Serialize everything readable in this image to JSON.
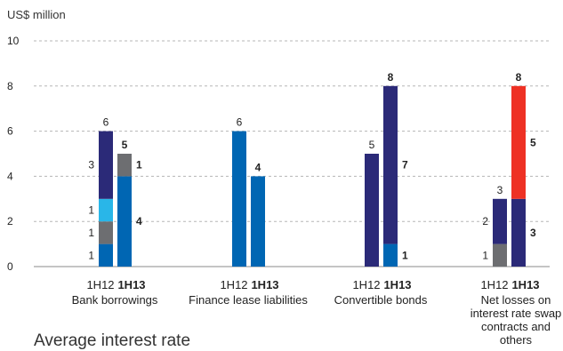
{
  "chart_data": {
    "type": "bar",
    "ylabel": "US$ million",
    "ylim": [
      0,
      10
    ],
    "yticks": [
      0,
      2,
      4,
      6,
      8,
      10
    ],
    "grid": true,
    "colors": {
      "navy": "#2b2a78",
      "blue": "#0066b3",
      "gray": "#6d6e71",
      "cyan": "#29b6e8",
      "red": "#ee3124"
    },
    "groups": [
      {
        "category": [
          "Bank borrowings"
        ],
        "bars": [
          {
            "period": "1H12",
            "bold": false,
            "total": 6,
            "segments": [
              {
                "value": 1,
                "color": "blue",
                "label": "1"
              },
              {
                "value": 1,
                "color": "gray",
                "label": "1"
              },
              {
                "value": 1,
                "color": "cyan",
                "label": "1"
              },
              {
                "value": 3,
                "color": "navy",
                "label": "3"
              }
            ]
          },
          {
            "period": "1H13",
            "bold": true,
            "total": 5,
            "segments": [
              {
                "value": 4,
                "color": "blue",
                "label": "4"
              },
              {
                "value": 1,
                "color": "gray",
                "label": "1"
              }
            ]
          }
        ]
      },
      {
        "category": [
          "Finance lease liabilities"
        ],
        "bars": [
          {
            "period": "1H12",
            "bold": false,
            "total": 6,
            "segments": [
              {
                "value": 6,
                "color": "blue",
                "label": ""
              }
            ]
          },
          {
            "period": "1H13",
            "bold": true,
            "total": 4,
            "segments": [
              {
                "value": 4,
                "color": "blue",
                "label": ""
              }
            ]
          }
        ]
      },
      {
        "category": [
          "Convertible bonds"
        ],
        "bars": [
          {
            "period": "1H12",
            "bold": false,
            "total": 5,
            "segments": [
              {
                "value": 5,
                "color": "navy",
                "label": ""
              }
            ]
          },
          {
            "period": "1H13",
            "bold": true,
            "total": 8,
            "segments": [
              {
                "value": 1,
                "color": "blue",
                "label": "1"
              },
              {
                "value": 7,
                "color": "navy",
                "label": "7"
              }
            ]
          }
        ]
      },
      {
        "category": [
          "Net losses on",
          "interest rate swap",
          "contracts and",
          "others"
        ],
        "bars": [
          {
            "period": "1H12",
            "bold": false,
            "total": 3,
            "segments": [
              {
                "value": 1,
                "color": "gray",
                "label": "1"
              },
              {
                "value": 2,
                "color": "navy",
                "label": "2"
              }
            ]
          },
          {
            "period": "1H13",
            "bold": true,
            "total": 8,
            "segments": [
              {
                "value": 3,
                "color": "navy",
                "label": "3"
              },
              {
                "value": 5,
                "color": "red",
                "label": "5"
              }
            ]
          }
        ]
      }
    ]
  },
  "footer_title": "Average interest rate"
}
